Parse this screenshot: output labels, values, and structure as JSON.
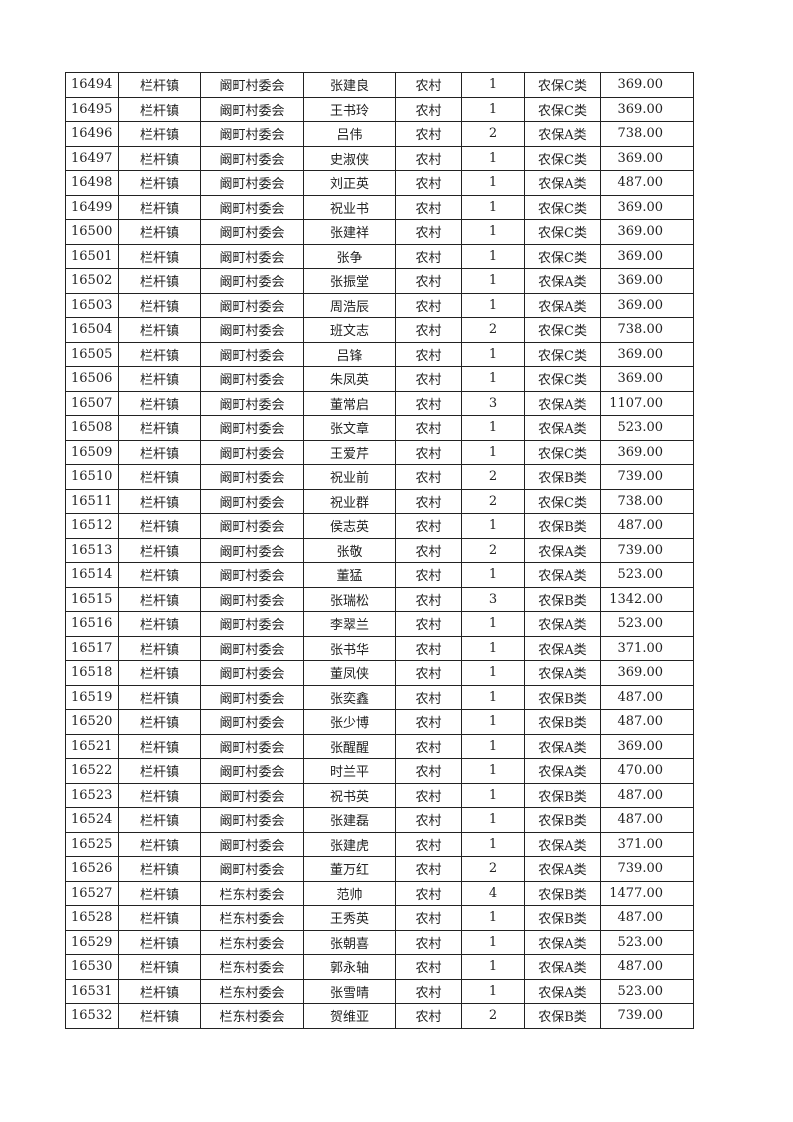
{
  "table": {
    "rows": [
      [
        "16494",
        "栏杆镇",
        "阚町村委会",
        "张建良",
        "农村",
        "1",
        "农保C类",
        "369.00"
      ],
      [
        "16495",
        "栏杆镇",
        "阚町村委会",
        "王书玲",
        "农村",
        "1",
        "农保C类",
        "369.00"
      ],
      [
        "16496",
        "栏杆镇",
        "阚町村委会",
        "吕伟",
        "农村",
        "2",
        "农保A类",
        "738.00"
      ],
      [
        "16497",
        "栏杆镇",
        "阚町村委会",
        "史淑侠",
        "农村",
        "1",
        "农保C类",
        "369.00"
      ],
      [
        "16498",
        "栏杆镇",
        "阚町村委会",
        "刘正英",
        "农村",
        "1",
        "农保A类",
        "487.00"
      ],
      [
        "16499",
        "栏杆镇",
        "阚町村委会",
        "祝业书",
        "农村",
        "1",
        "农保C类",
        "369.00"
      ],
      [
        "16500",
        "栏杆镇",
        "阚町村委会",
        "张建祥",
        "农村",
        "1",
        "农保C类",
        "369.00"
      ],
      [
        "16501",
        "栏杆镇",
        "阚町村委会",
        "张争",
        "农村",
        "1",
        "农保C类",
        "369.00"
      ],
      [
        "16502",
        "栏杆镇",
        "阚町村委会",
        "张振堂",
        "农村",
        "1",
        "农保A类",
        "369.00"
      ],
      [
        "16503",
        "栏杆镇",
        "阚町村委会",
        "周浩辰",
        "农村",
        "1",
        "农保A类",
        "369.00"
      ],
      [
        "16504",
        "栏杆镇",
        "阚町村委会",
        "班文志",
        "农村",
        "2",
        "农保C类",
        "738.00"
      ],
      [
        "16505",
        "栏杆镇",
        "阚町村委会",
        "吕锋",
        "农村",
        "1",
        "农保C类",
        "369.00"
      ],
      [
        "16506",
        "栏杆镇",
        "阚町村委会",
        "朱凤英",
        "农村",
        "1",
        "农保C类",
        "369.00"
      ],
      [
        "16507",
        "栏杆镇",
        "阚町村委会",
        "董常启",
        "农村",
        "3",
        "农保A类",
        "1107.00"
      ],
      [
        "16508",
        "栏杆镇",
        "阚町村委会",
        "张文章",
        "农村",
        "1",
        "农保A类",
        "523.00"
      ],
      [
        "16509",
        "栏杆镇",
        "阚町村委会",
        "王爱芹",
        "农村",
        "1",
        "农保C类",
        "369.00"
      ],
      [
        "16510",
        "栏杆镇",
        "阚町村委会",
        "祝业前",
        "农村",
        "2",
        "农保B类",
        "739.00"
      ],
      [
        "16511",
        "栏杆镇",
        "阚町村委会",
        "祝业群",
        "农村",
        "2",
        "农保C类",
        "738.00"
      ],
      [
        "16512",
        "栏杆镇",
        "阚町村委会",
        "侯志英",
        "农村",
        "1",
        "农保B类",
        "487.00"
      ],
      [
        "16513",
        "栏杆镇",
        "阚町村委会",
        "张敬",
        "农村",
        "2",
        "农保A类",
        "739.00"
      ],
      [
        "16514",
        "栏杆镇",
        "阚町村委会",
        "董猛",
        "农村",
        "1",
        "农保A类",
        "523.00"
      ],
      [
        "16515",
        "栏杆镇",
        "阚町村委会",
        "张瑞松",
        "农村",
        "3",
        "农保B类",
        "1342.00"
      ],
      [
        "16516",
        "栏杆镇",
        "阚町村委会",
        "李翠兰",
        "农村",
        "1",
        "农保A类",
        "523.00"
      ],
      [
        "16517",
        "栏杆镇",
        "阚町村委会",
        "张书华",
        "农村",
        "1",
        "农保A类",
        "371.00"
      ],
      [
        "16518",
        "栏杆镇",
        "阚町村委会",
        "董凤侠",
        "农村",
        "1",
        "农保A类",
        "369.00"
      ],
      [
        "16519",
        "栏杆镇",
        "阚町村委会",
        "张奕鑫",
        "农村",
        "1",
        "农保B类",
        "487.00"
      ],
      [
        "16520",
        "栏杆镇",
        "阚町村委会",
        "张少博",
        "农村",
        "1",
        "农保B类",
        "487.00"
      ],
      [
        "16521",
        "栏杆镇",
        "阚町村委会",
        "张醒醒",
        "农村",
        "1",
        "农保A类",
        "369.00"
      ],
      [
        "16522",
        "栏杆镇",
        "阚町村委会",
        "时兰平",
        "农村",
        "1",
        "农保A类",
        "470.00"
      ],
      [
        "16523",
        "栏杆镇",
        "阚町村委会",
        "祝书英",
        "农村",
        "1",
        "农保B类",
        "487.00"
      ],
      [
        "16524",
        "栏杆镇",
        "阚町村委会",
        "张建磊",
        "农村",
        "1",
        "农保B类",
        "487.00"
      ],
      [
        "16525",
        "栏杆镇",
        "阚町村委会",
        "张建虎",
        "农村",
        "1",
        "农保A类",
        "371.00"
      ],
      [
        "16526",
        "栏杆镇",
        "阚町村委会",
        "董万红",
        "农村",
        "2",
        "农保A类",
        "739.00"
      ],
      [
        "16527",
        "栏杆镇",
        "栏东村委会",
        "范帅",
        "农村",
        "4",
        "农保B类",
        "1477.00"
      ],
      [
        "16528",
        "栏杆镇",
        "栏东村委会",
        "王秀英",
        "农村",
        "1",
        "农保B类",
        "487.00"
      ],
      [
        "16529",
        "栏杆镇",
        "栏东村委会",
        "张朝喜",
        "农村",
        "1",
        "农保A类",
        "523.00"
      ],
      [
        "16530",
        "栏杆镇",
        "栏东村委会",
        "郭永轴",
        "农村",
        "1",
        "农保A类",
        "487.00"
      ],
      [
        "16531",
        "栏杆镇",
        "栏东村委会",
        "张雪晴",
        "农村",
        "1",
        "农保A类",
        "523.00"
      ],
      [
        "16532",
        "栏杆镇",
        "栏东村委会",
        "贺维亚",
        "农村",
        "2",
        "农保B类",
        "739.00"
      ]
    ]
  }
}
